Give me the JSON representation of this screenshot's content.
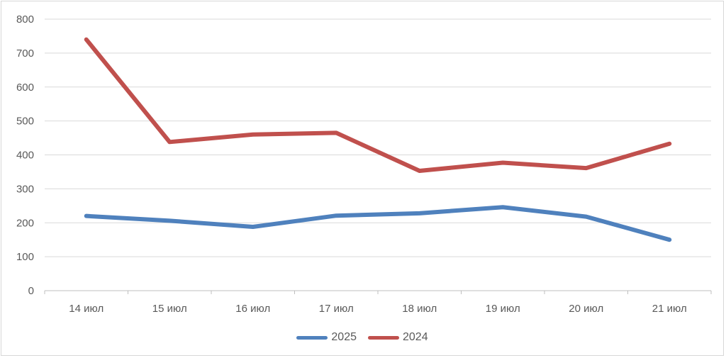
{
  "chart_data": {
    "type": "line",
    "categories": [
      "14 июл",
      "15 июл",
      "16 июл",
      "17 июл",
      "18 июл",
      "19 июл",
      "20 июл",
      "21 июл"
    ],
    "series": [
      {
        "name": "2025",
        "color": "#4F81BD",
        "values": [
          220,
          206,
          188,
          221,
          228,
          246,
          218,
          150
        ]
      },
      {
        "name": "2024",
        "color": "#C0504D",
        "values": [
          740,
          438,
          460,
          465,
          353,
          377,
          361,
          433
        ]
      }
    ],
    "title": "",
    "xlabel": "",
    "ylabel": "",
    "ylim": [
      0,
      800
    ],
    "ytick_step": 100,
    "grid": true,
    "legend_position": "bottom"
  },
  "style": {
    "gridline_color": "#d9d9d9",
    "axis_line_color": "#bfbfbf",
    "tick_label_color": "#595959",
    "background_color": "#ffffff",
    "frame_border_color": "#d7d7d7"
  }
}
